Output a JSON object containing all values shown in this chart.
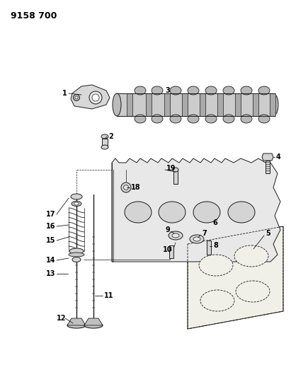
{
  "title": "9158 700",
  "bg_color": "#ffffff",
  "line_color": "#1a1a1a",
  "title_fontsize": 9,
  "label_fontsize": 7,
  "fig_width": 4.11,
  "fig_height": 5.33,
  "dpi": 100,
  "cam_color": "#cccccc",
  "head_color": "#e8e8e8",
  "gasket_color": "#f0efe8",
  "part_color": "#d4d4d4"
}
